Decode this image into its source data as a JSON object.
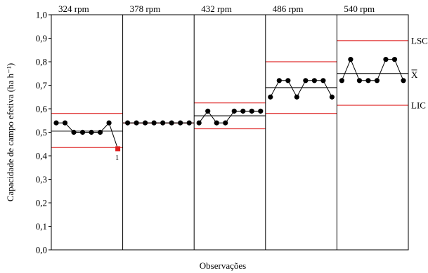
{
  "chart_data": {
    "type": "line",
    "subtype": "control-chart-by-phase",
    "xlabel": "Observações",
    "ylabel": "Capacidade de campo efetiva (ha h⁻¹)",
    "ylim": [
      0,
      1.0
    ],
    "yticks": [
      "0,0",
      "0,1",
      "0,2",
      "0,3",
      "0,4",
      "0,5",
      "0,6",
      "0,7",
      "0,8",
      "0,9",
      "1,0"
    ],
    "grid": false,
    "limit_labels": {
      "upper": "LSC",
      "center": "X",
      "lower": "LIC"
    },
    "colors": {
      "limit": "#e03030",
      "center": "#000000",
      "points": "#000000",
      "out_of_control": "#e02020"
    },
    "phases": [
      {
        "label": "324 rpm",
        "values": [
          0.54,
          0.54,
          0.5,
          0.5,
          0.5,
          0.5,
          0.54,
          0.43
        ],
        "center": 0.505,
        "ucl": 0.58,
        "lcl": 0.435,
        "flagged": [
          {
            "index": 7,
            "label": "1"
          }
        ]
      },
      {
        "label": "378 rpm",
        "values": [
          0.54,
          0.54,
          0.54,
          0.54,
          0.54,
          0.54,
          0.54,
          0.54
        ],
        "center": 0.54,
        "ucl": 0.54,
        "lcl": 0.54,
        "flagged": []
      },
      {
        "label": "432 rpm",
        "values": [
          0.54,
          0.59,
          0.54,
          0.54,
          0.59,
          0.59,
          0.59,
          0.59
        ],
        "center": 0.57,
        "ucl": 0.625,
        "lcl": 0.515,
        "flagged": []
      },
      {
        "label": "486 rpm",
        "values": [
          0.65,
          0.72,
          0.72,
          0.65,
          0.72,
          0.72,
          0.72,
          0.65
        ],
        "center": 0.69,
        "ucl": 0.8,
        "lcl": 0.58,
        "flagged": []
      },
      {
        "label": "540 rpm",
        "values": [
          0.72,
          0.81,
          0.72,
          0.72,
          0.72,
          0.81,
          0.81,
          0.72
        ],
        "center": 0.75,
        "ucl": 0.89,
        "lcl": 0.615,
        "flagged": []
      }
    ]
  }
}
